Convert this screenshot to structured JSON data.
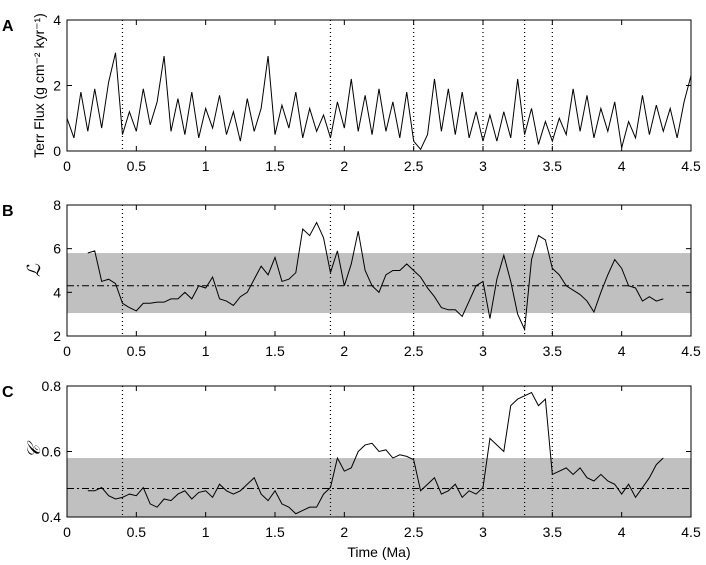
{
  "chart_data": [
    {
      "type": "line",
      "panel_label": "A",
      "ylabel": "Terr Flux (g cm⁻² kyr⁻¹)",
      "x": [
        0,
        0.05,
        0.1,
        0.15,
        0.2,
        0.25,
        0.3,
        0.35,
        0.4,
        0.45,
        0.5,
        0.55,
        0.6,
        0.65,
        0.7,
        0.75,
        0.8,
        0.85,
        0.9,
        0.95,
        1.0,
        1.05,
        1.1,
        1.15,
        1.2,
        1.25,
        1.3,
        1.35,
        1.4,
        1.45,
        1.5,
        1.55,
        1.6,
        1.65,
        1.7,
        1.75,
        1.8,
        1.85,
        1.9,
        1.95,
        2.0,
        2.05,
        2.1,
        2.15,
        2.2,
        2.25,
        2.3,
        2.35,
        2.4,
        2.45,
        2.5,
        2.55,
        2.6,
        2.65,
        2.7,
        2.75,
        2.8,
        2.85,
        2.9,
        2.95,
        3.0,
        3.05,
        3.1,
        3.15,
        3.2,
        3.25,
        3.3,
        3.35,
        3.4,
        3.45,
        3.5,
        3.55,
        3.6,
        3.65,
        3.7,
        3.75,
        3.8,
        3.85,
        3.9,
        3.95,
        4.0,
        4.05,
        4.1,
        4.15,
        4.2,
        4.25,
        4.3,
        4.35,
        4.4,
        4.45,
        4.5
      ],
      "values": [
        1.0,
        0.4,
        1.8,
        0.6,
        1.9,
        0.7,
        2.1,
        3.0,
        0.5,
        1.2,
        0.6,
        1.9,
        0.8,
        1.5,
        2.9,
        0.6,
        1.6,
        0.5,
        1.8,
        0.4,
        1.3,
        0.7,
        1.7,
        0.5,
        1.2,
        0.3,
        1.6,
        0.6,
        1.3,
        2.9,
        0.5,
        1.4,
        0.7,
        1.8,
        0.4,
        1.3,
        0.6,
        1.1,
        0.4,
        1.5,
        0.7,
        2.2,
        0.6,
        1.7,
        0.5,
        1.9,
        0.6,
        1.5,
        0.4,
        1.8,
        0.3,
        0.05,
        0.5,
        2.2,
        0.6,
        1.9,
        0.5,
        1.8,
        0.4,
        1.2,
        0.3,
        1.1,
        0.3,
        1.2,
        0.4,
        2.2,
        0.5,
        1.3,
        0.2,
        0.9,
        0.3,
        1.0,
        0.5,
        1.9,
        0.6,
        1.7,
        0.4,
        1.3,
        0.6,
        1.5,
        0.1,
        0.9,
        0.4,
        1.7,
        0.5,
        1.4,
        0.6,
        1.3,
        0.4,
        1.5,
        2.3
      ],
      "color": "#000000",
      "xlim": [
        0,
        4.5
      ],
      "ylim": [
        0,
        4
      ],
      "xticks": [
        0,
        0.5,
        1,
        1.5,
        2,
        2.5,
        3,
        3.5,
        4,
        4.5
      ],
      "yticks": [
        0,
        2,
        4
      ],
      "vlines": [
        0.4,
        1.9,
        2.5,
        3.0,
        3.3,
        3.5
      ]
    },
    {
      "type": "line",
      "panel_label": "B",
      "ylabel": "ℒ",
      "x": [
        0.15,
        0.2,
        0.25,
        0.3,
        0.35,
        0.4,
        0.45,
        0.5,
        0.55,
        0.6,
        0.65,
        0.7,
        0.75,
        0.8,
        0.85,
        0.9,
        0.95,
        1.0,
        1.05,
        1.1,
        1.15,
        1.2,
        1.25,
        1.3,
        1.35,
        1.4,
        1.45,
        1.5,
        1.55,
        1.6,
        1.65,
        1.7,
        1.75,
        1.8,
        1.85,
        1.9,
        1.95,
        2.0,
        2.05,
        2.1,
        2.15,
        2.2,
        2.25,
        2.3,
        2.35,
        2.4,
        2.45,
        2.5,
        2.55,
        2.6,
        2.65,
        2.7,
        2.75,
        2.8,
        2.85,
        2.9,
        2.95,
        3.0,
        3.05,
        3.1,
        3.15,
        3.2,
        3.25,
        3.3,
        3.35,
        3.4,
        3.45,
        3.5,
        3.55,
        3.6,
        3.65,
        3.7,
        3.75,
        3.8,
        3.85,
        3.9,
        3.95,
        4.0,
        4.05,
        4.1,
        4.15,
        4.2,
        4.25,
        4.3
      ],
      "values": [
        5.8,
        5.9,
        4.5,
        4.6,
        4.4,
        3.5,
        3.3,
        3.15,
        3.5,
        3.5,
        3.55,
        3.55,
        3.7,
        3.7,
        4.0,
        3.7,
        4.3,
        4.2,
        4.7,
        3.7,
        3.6,
        3.4,
        3.8,
        4.0,
        4.6,
        5.2,
        4.8,
        5.6,
        4.5,
        4.6,
        4.9,
        6.9,
        6.6,
        7.2,
        6.5,
        4.9,
        5.9,
        4.3,
        5.3,
        6.8,
        5.0,
        4.3,
        4.0,
        4.8,
        5.0,
        5.0,
        5.3,
        5.0,
        4.7,
        4.2,
        3.8,
        3.3,
        3.2,
        3.2,
        2.9,
        3.6,
        4.3,
        4.5,
        2.8,
        4.6,
        5.7,
        4.5,
        3.0,
        2.3,
        5.5,
        6.6,
        6.4,
        5.1,
        4.8,
        4.3,
        4.1,
        3.9,
        3.6,
        3.1,
        4.0,
        4.8,
        5.5,
        5.1,
        4.3,
        4.2,
        3.6,
        3.8,
        3.6,
        3.7
      ],
      "color": "#000000",
      "xlim": [
        0,
        4.5
      ],
      "ylim": [
        2,
        8
      ],
      "xticks": [
        0,
        0.5,
        1,
        1.5,
        2,
        2.5,
        3,
        3.5,
        4,
        4.5
      ],
      "yticks": [
        2,
        4,
        6,
        8
      ],
      "vlines": [
        0.4,
        1.9,
        2.5,
        3.0,
        3.3,
        3.5
      ],
      "band": [
        3.05,
        5.8
      ],
      "band_color": "#c0c0c0",
      "reference": 4.3
    },
    {
      "type": "line",
      "panel_label": "C",
      "ylabel": "𝒞",
      "xlabel": "Time (Ma)",
      "x": [
        0.15,
        0.2,
        0.25,
        0.3,
        0.35,
        0.4,
        0.45,
        0.5,
        0.55,
        0.6,
        0.65,
        0.7,
        0.75,
        0.8,
        0.85,
        0.9,
        0.95,
        1.0,
        1.05,
        1.1,
        1.15,
        1.2,
        1.25,
        1.3,
        1.35,
        1.4,
        1.45,
        1.5,
        1.55,
        1.6,
        1.65,
        1.7,
        1.75,
        1.8,
        1.85,
        1.9,
        1.95,
        2.0,
        2.05,
        2.1,
        2.15,
        2.2,
        2.25,
        2.3,
        2.35,
        2.4,
        2.45,
        2.5,
        2.55,
        2.6,
        2.65,
        2.7,
        2.75,
        2.8,
        2.85,
        2.9,
        2.95,
        3.0,
        3.05,
        3.1,
        3.15,
        3.2,
        3.25,
        3.3,
        3.35,
        3.4,
        3.45,
        3.5,
        3.55,
        3.6,
        3.65,
        3.7,
        3.75,
        3.8,
        3.85,
        3.9,
        3.95,
        4.0,
        4.05,
        4.1,
        4.15,
        4.2,
        4.25,
        4.3
      ],
      "values": [
        0.48,
        0.48,
        0.49,
        0.465,
        0.455,
        0.46,
        0.47,
        0.465,
        0.49,
        0.44,
        0.43,
        0.455,
        0.45,
        0.47,
        0.48,
        0.455,
        0.475,
        0.48,
        0.46,
        0.5,
        0.48,
        0.47,
        0.48,
        0.5,
        0.52,
        0.47,
        0.45,
        0.48,
        0.44,
        0.43,
        0.41,
        0.42,
        0.43,
        0.43,
        0.47,
        0.49,
        0.58,
        0.54,
        0.55,
        0.6,
        0.62,
        0.625,
        0.6,
        0.605,
        0.58,
        0.59,
        0.585,
        0.575,
        0.48,
        0.5,
        0.52,
        0.47,
        0.48,
        0.5,
        0.46,
        0.48,
        0.47,
        0.49,
        0.64,
        0.62,
        0.6,
        0.74,
        0.76,
        0.77,
        0.78,
        0.74,
        0.76,
        0.53,
        0.54,
        0.55,
        0.53,
        0.55,
        0.52,
        0.51,
        0.53,
        0.51,
        0.5,
        0.47,
        0.5,
        0.46,
        0.49,
        0.52,
        0.56,
        0.58
      ],
      "color": "#000000",
      "xlim": [
        0,
        4.5
      ],
      "ylim": [
        0.4,
        0.8
      ],
      "xticks": [
        0,
        0.5,
        1,
        1.5,
        2,
        2.5,
        3,
        3.5,
        4,
        4.5
      ],
      "yticks": [
        0.4,
        0.6,
        0.8
      ],
      "vlines": [
        0.4,
        1.9,
        2.5,
        3.0,
        3.3,
        3.5
      ],
      "band": [
        0.4,
        0.58
      ],
      "band_color": "#c0c0c0",
      "reference": 0.487
    }
  ]
}
